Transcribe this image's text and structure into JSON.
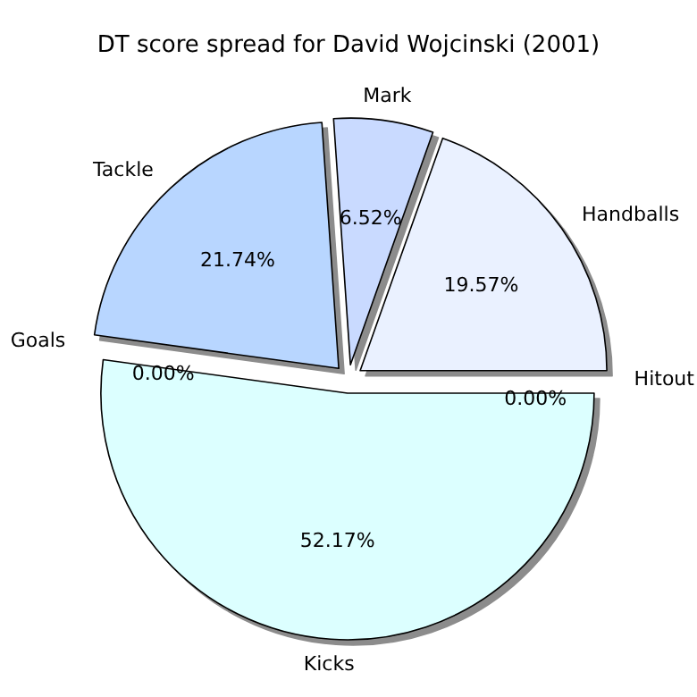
{
  "chart_data": {
    "type": "pie",
    "title": "DT score spread for David Wojcinski (2001)",
    "categories": [
      "Hitout",
      "Handballs",
      "Mark",
      "Tackle",
      "Goals",
      "Kicks"
    ],
    "values": [
      0,
      19.57,
      6.52,
      21.74,
      0,
      52.17
    ],
    "colors": [
      "#e0e8ff",
      "#eaf1ff",
      "#c9daff",
      "#b8d6ff",
      "#d0e8ff",
      "#dcffff"
    ],
    "value_labels": [
      "0.00%",
      "19.57%",
      "6.52%",
      "21.74%",
      "0.00%",
      "52.17%"
    ]
  }
}
